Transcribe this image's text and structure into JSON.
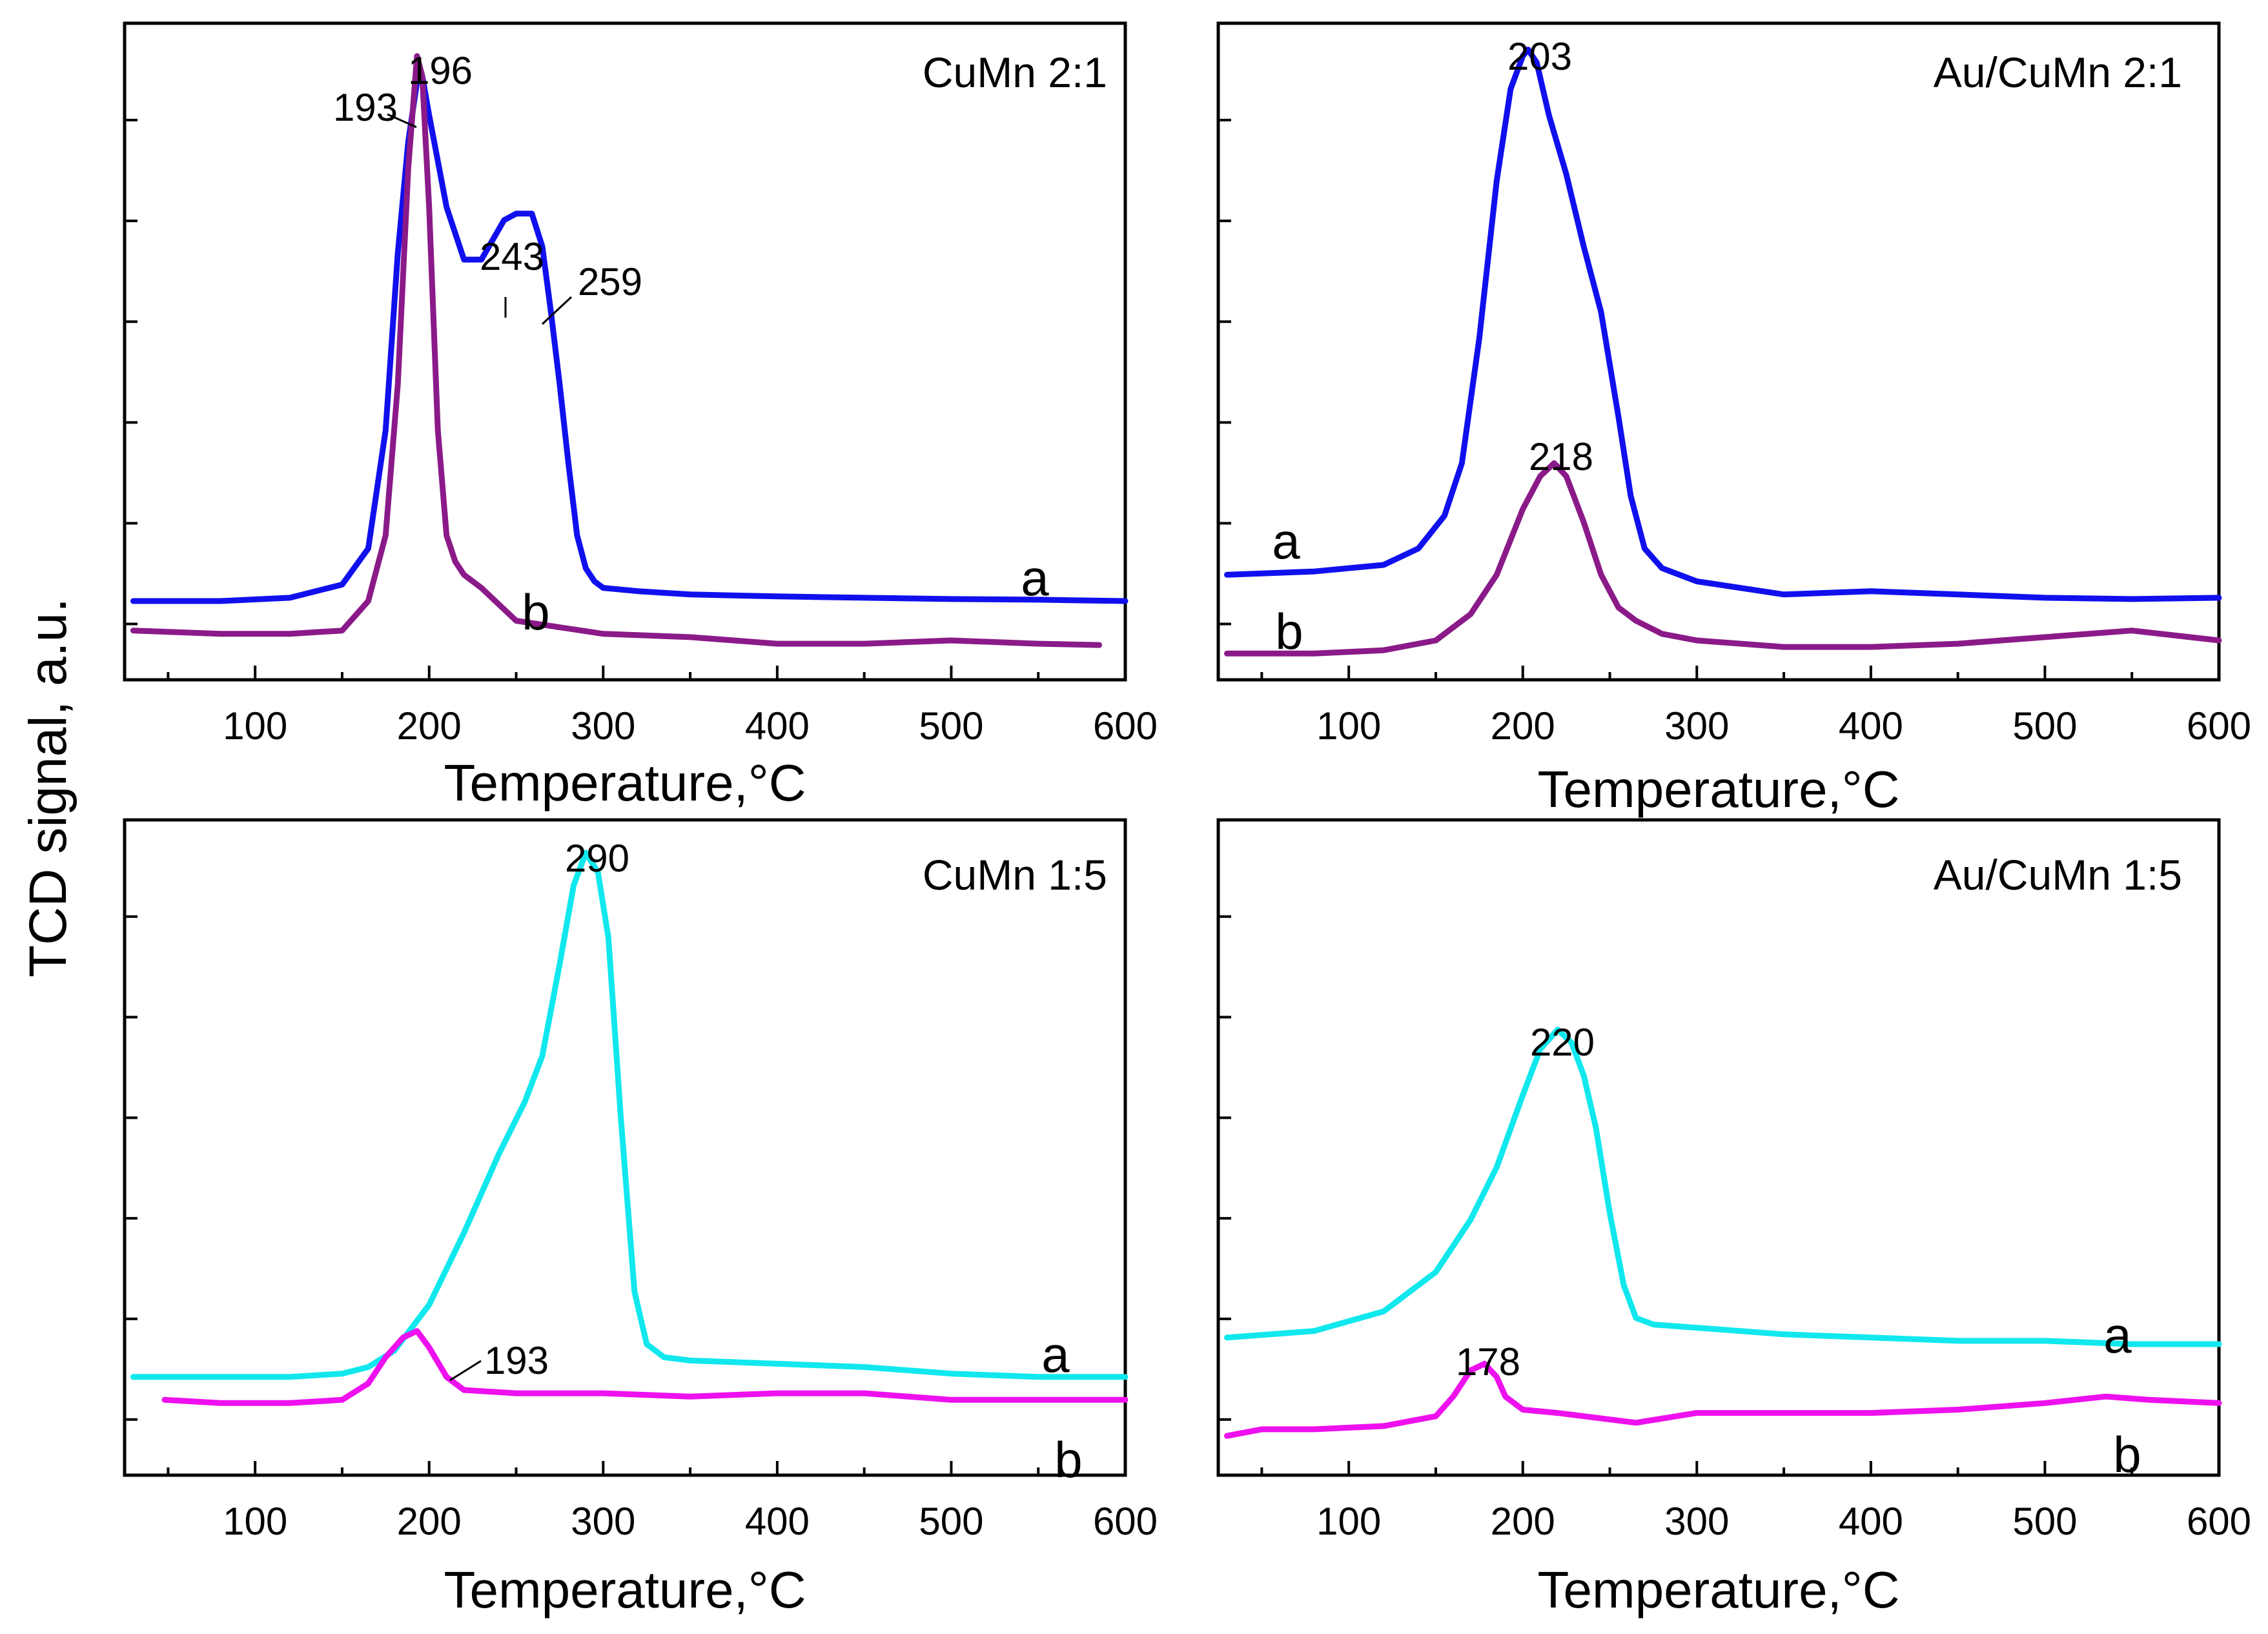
{
  "figure": {
    "ylabel": "TCD signal, a.u."
  },
  "colors": {
    "blue": "#1010ee",
    "purple": "#8b1a89",
    "cyan": "#10e8ee",
    "magenta": "#ee10ee"
  },
  "chart_data": [
    {
      "type": "line",
      "title": "CuMn 2:1",
      "xlabel": "Temperature,°C",
      "ylabel": "TCD signal, a.u.",
      "xlim": [
        25,
        600
      ],
      "ylim": [
        0,
        100
      ],
      "xticks": [
        100,
        200,
        300,
        400,
        500,
        600
      ],
      "series": [
        {
          "name": "a",
          "color": "blue",
          "x": [
            30,
            80,
            120,
            150,
            165,
            175,
            182,
            188,
            193,
            196,
            200,
            210,
            220,
            230,
            243,
            250,
            259,
            265,
            270,
            275,
            280,
            285,
            290,
            295,
            300,
            320,
            350,
            400,
            450,
            500,
            550,
            600
          ],
          "y": [
            12,
            12,
            12.5,
            14.5,
            20,
            38,
            65,
            82,
            91,
            92,
            86,
            72,
            64,
            64,
            70,
            71,
            71,
            66,
            56,
            45,
            33,
            22,
            17,
            15,
            14,
            13.5,
            13,
            12.7,
            12.5,
            12.3,
            12.2,
            12.0
          ]
        },
        {
          "name": "b",
          "color": "purple",
          "x": [
            30,
            80,
            120,
            150,
            165,
            175,
            182,
            188,
            193,
            196,
            200,
            205,
            210,
            215,
            220,
            230,
            250,
            300,
            350,
            400,
            450,
            500,
            550,
            585
          ],
          "y": [
            7.5,
            7,
            7,
            7.5,
            12,
            22,
            45,
            78,
            95,
            92,
            72,
            38,
            22,
            18,
            16,
            14,
            9,
            7,
            6.5,
            5.5,
            5.5,
            6,
            5.5,
            5.3
          ]
        }
      ],
      "annotations": [
        {
          "text": "193",
          "x": 193
        },
        {
          "text": "196",
          "x": 196
        },
        {
          "text": "243",
          "x": 243
        },
        {
          "text": "259",
          "x": 259
        }
      ],
      "curve_labels": [
        "a",
        "b"
      ]
    },
    {
      "type": "line",
      "title": "Au/CuMn 2:1",
      "xlabel": "Temperature,°C",
      "ylabel": "TCD signal, a.u.",
      "xlim": [
        25,
        600
      ],
      "ylim": [
        0,
        100
      ],
      "xticks": [
        100,
        200,
        300,
        400,
        500,
        600
      ],
      "series": [
        {
          "name": "a",
          "color": "blue",
          "x": [
            30,
            80,
            120,
            140,
            155,
            165,
            175,
            185,
            193,
            200,
            203,
            208,
            215,
            225,
            235,
            245,
            255,
            262,
            270,
            280,
            300,
            350,
            400,
            450,
            500,
            550,
            600
          ],
          "y": [
            16,
            16.5,
            17.5,
            20,
            25,
            33,
            52,
            76,
            90,
            95,
            96,
            94,
            86,
            77,
            66,
            56,
            40,
            28,
            20,
            17,
            15,
            13,
            13.5,
            13,
            12.5,
            12.3,
            12.5
          ]
        },
        {
          "name": "b",
          "color": "purple",
          "x": [
            30,
            80,
            120,
            150,
            170,
            185,
            200,
            210,
            218,
            225,
            235,
            245,
            255,
            265,
            280,
            300,
            350,
            400,
            450,
            500,
            550,
            600
          ],
          "y": [
            4,
            4,
            4.5,
            6,
            10,
            16,
            26,
            31,
            33,
            31,
            24,
            16,
            11,
            9,
            7,
            6,
            5,
            5,
            5.5,
            6.5,
            7.5,
            6
          ]
        }
      ],
      "annotations": [
        {
          "text": "203",
          "x": 203
        },
        {
          "text": "218",
          "x": 218
        }
      ],
      "curve_labels": [
        "a",
        "b"
      ]
    },
    {
      "type": "line",
      "title": "CuMn 1:5",
      "xlabel": "Temperature,°C",
      "ylabel": "TCD signal, a.u.",
      "xlim": [
        25,
        600
      ],
      "ylim": [
        0,
        100
      ],
      "xticks": [
        100,
        200,
        300,
        400,
        500,
        600
      ],
      "series": [
        {
          "name": "a",
          "color": "cyan",
          "x": [
            30,
            80,
            120,
            150,
            165,
            180,
            200,
            220,
            240,
            255,
            265,
            275,
            283,
            290,
            297,
            303,
            310,
            318,
            325,
            335,
            350,
            400,
            450,
            500,
            550,
            600
          ],
          "y": [
            15,
            15,
            15,
            15.5,
            16.5,
            19,
            26,
            37,
            49,
            57,
            64,
            78,
            90,
            95,
            92,
            82,
            55,
            28,
            20,
            18,
            17.5,
            17,
            16.5,
            15.5,
            15,
            15
          ]
        },
        {
          "name": "b",
          "color": "magenta",
          "x": [
            48,
            80,
            120,
            150,
            165,
            175,
            185,
            193,
            200,
            210,
            220,
            250,
            300,
            350,
            400,
            450,
            500,
            550,
            600
          ],
          "y": [
            11.5,
            11,
            11,
            11.5,
            14,
            18,
            21,
            22,
            19.5,
            15,
            13,
            12.5,
            12.5,
            12,
            12.5,
            12.5,
            11.5,
            11.5,
            11.5
          ]
        }
      ],
      "annotations": [
        {
          "text": "290",
          "x": 290
        },
        {
          "text": "193",
          "x": 193
        }
      ],
      "curve_labels": [
        "a",
        "b"
      ]
    },
    {
      "type": "line",
      "title": "Au/CuMn 1:5",
      "xlabel": "Temperature,°C",
      "ylabel": "TCD signal, a.u.",
      "xlim": [
        25,
        600
      ],
      "ylim": [
        0,
        100
      ],
      "xticks": [
        100,
        200,
        300,
        400,
        500,
        600
      ],
      "series": [
        {
          "name": "a",
          "color": "cyan",
          "x": [
            30,
            80,
            120,
            150,
            170,
            185,
            200,
            210,
            220,
            228,
            235,
            242,
            250,
            258,
            265,
            275,
            300,
            350,
            400,
            450,
            500,
            550,
            600
          ],
          "y": [
            21,
            22,
            25,
            31,
            39,
            47,
            58,
            65,
            68,
            66,
            61,
            53,
            40,
            29,
            24,
            23,
            22.5,
            21.5,
            21,
            20.5,
            20.5,
            20,
            20
          ]
        },
        {
          "name": "b",
          "color": "magenta",
          "x": [
            30,
            50,
            80,
            120,
            150,
            160,
            170,
            178,
            185,
            190,
            200,
            220,
            250,
            265,
            300,
            350,
            400,
            450,
            500,
            535,
            560,
            600
          ],
          "y": [
            6,
            7,
            7,
            7.5,
            9,
            12,
            16,
            17,
            15,
            12,
            10,
            9.5,
            8.5,
            8,
            9.5,
            9.5,
            9.5,
            10,
            11,
            12,
            11.5,
            11
          ]
        }
      ],
      "annotations": [
        {
          "text": "220",
          "x": 220
        },
        {
          "text": "178",
          "x": 178
        }
      ],
      "curve_labels": [
        "a",
        "b"
      ]
    }
  ]
}
